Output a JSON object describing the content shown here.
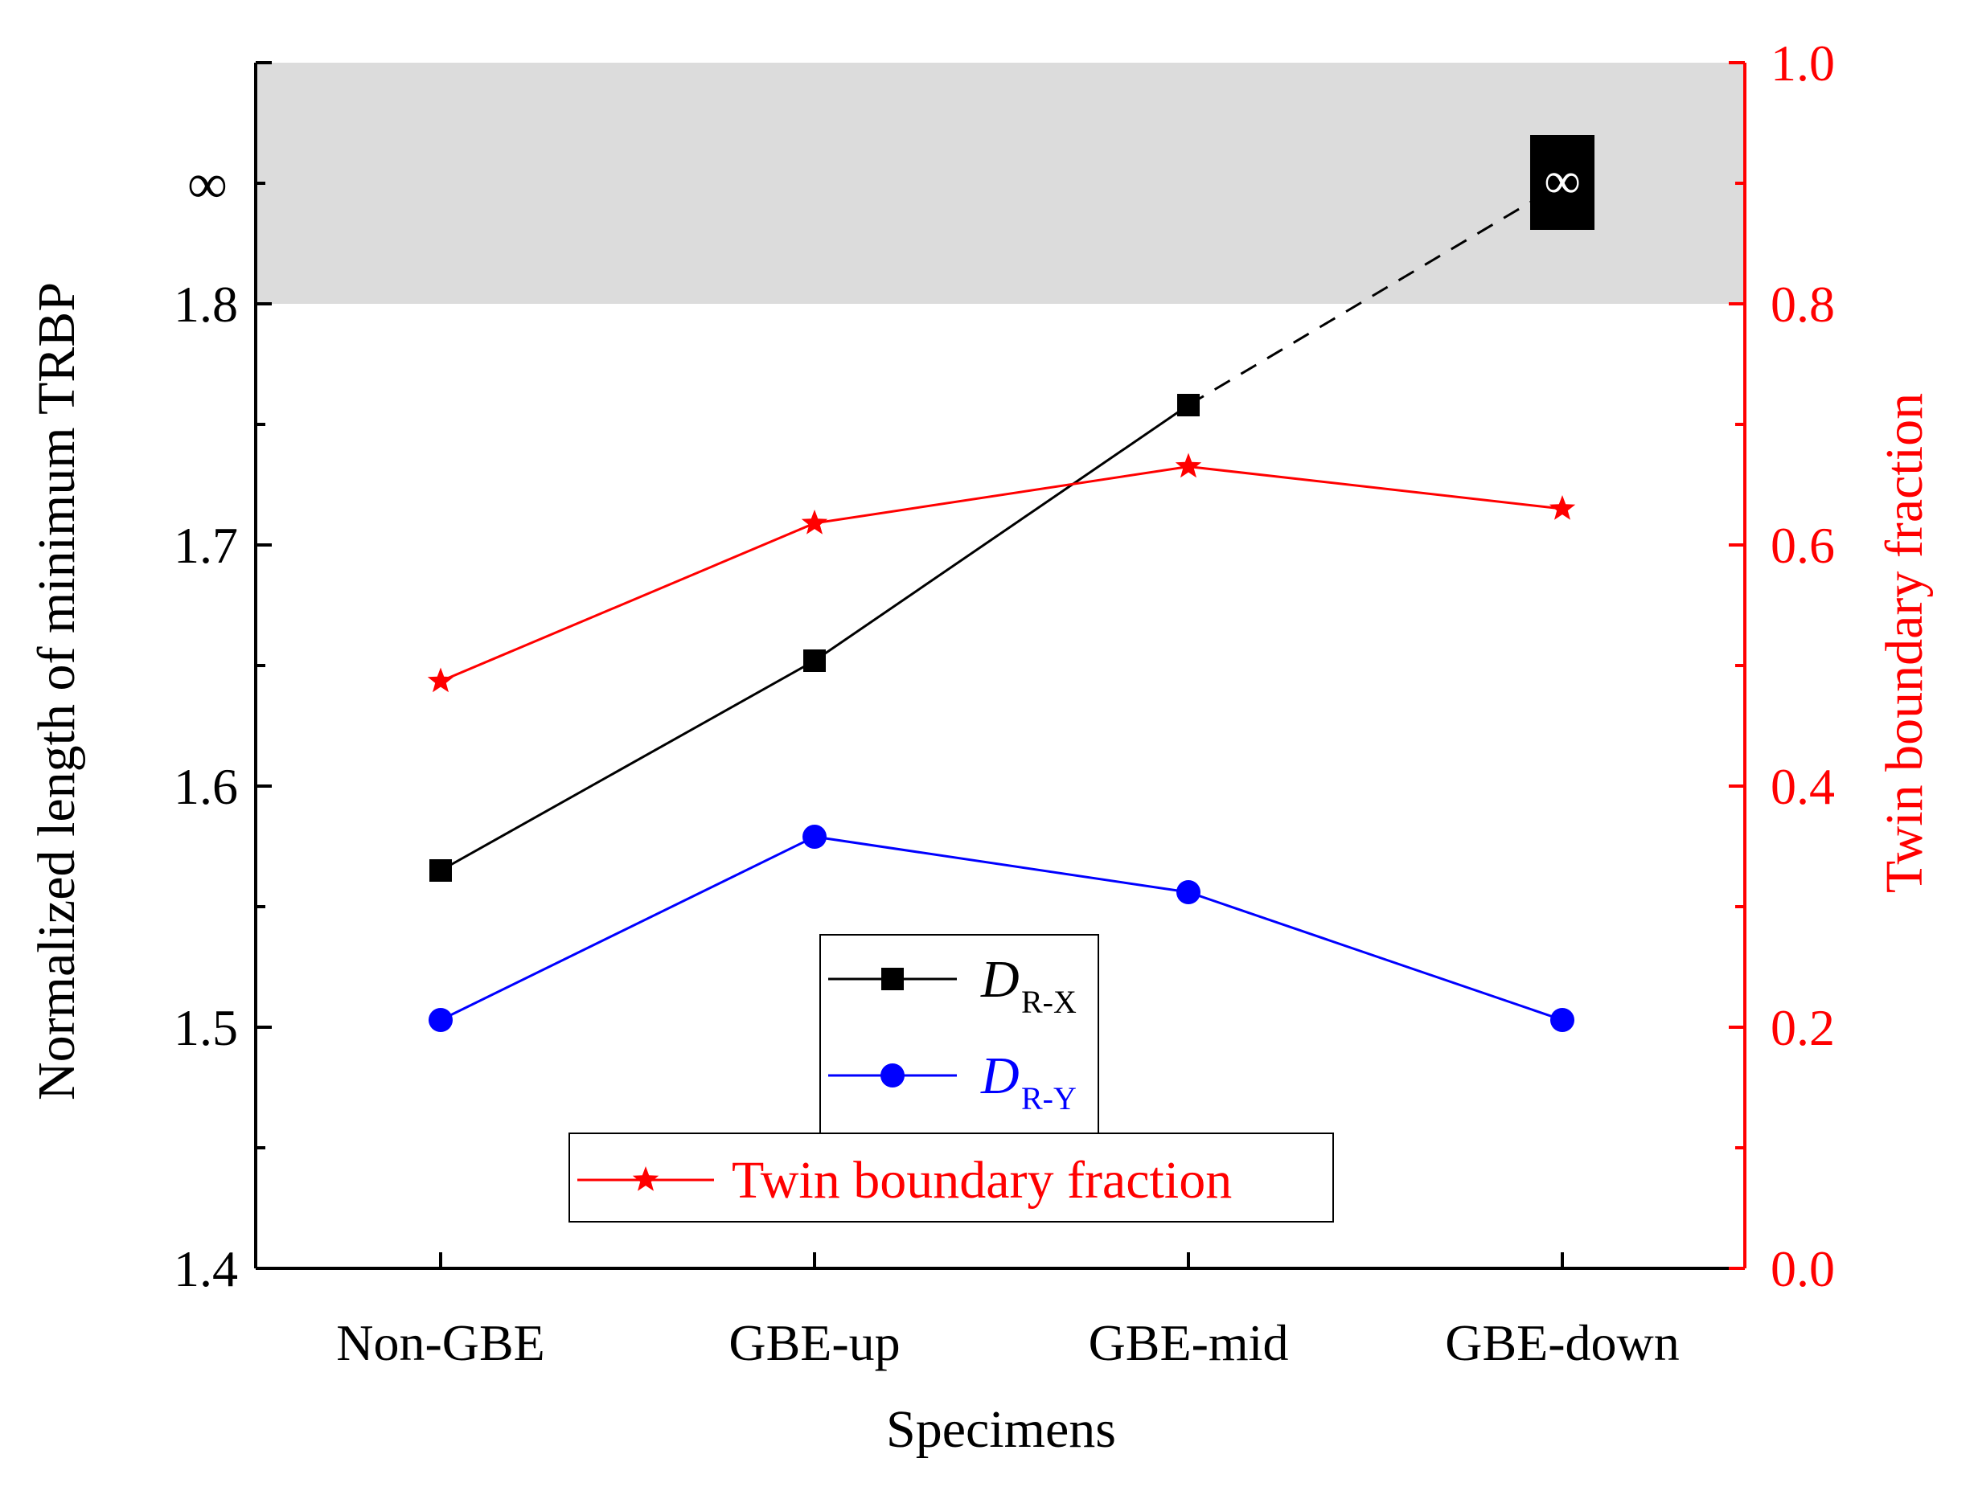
{
  "chart_data": {
    "type": "line",
    "xlabel": "Specimens",
    "ylabel": "Normalized length of minimum TRBP",
    "y2label": "Twin boundary fraction",
    "categories": [
      "Non-GBE",
      "GBE-up",
      "GBE-mid",
      "GBE-down"
    ],
    "ylim": [
      1.4,
      1.9
    ],
    "y_ticks": [
      "1.4",
      "1.5",
      "1.6",
      "1.7",
      "1.8"
    ],
    "y_infinity_label": "∞",
    "y2lim": [
      0.0,
      1.0
    ],
    "y2_ticks": [
      "0.0",
      "0.2",
      "0.4",
      "0.6",
      "0.8",
      "1.0"
    ],
    "shaded_region": {
      "from": 1.8,
      "to": 1.9,
      "meaning": "infinite"
    },
    "series": [
      {
        "name": "D_R-X",
        "legend_main": "D",
        "legend_sub": "R-X",
        "axis": "left",
        "marker": "square",
        "color": "#000000",
        "values": [
          1.565,
          1.652,
          1.758,
          null
        ],
        "extension": {
          "from_index": 2,
          "to_index": 3,
          "to_value": 1.85,
          "style": "dashed",
          "label": "∞"
        }
      },
      {
        "name": "D_R-Y",
        "legend_main": "D",
        "legend_sub": "R-Y",
        "axis": "left",
        "marker": "circle",
        "color": "#0000ff",
        "values": [
          1.503,
          1.579,
          1.556,
          1.503
        ]
      },
      {
        "name": "Twin boundary fraction",
        "legend_label": "Twin boundary fraction",
        "axis": "right",
        "marker": "star",
        "color": "#ff0000",
        "values": [
          0.487,
          0.618,
          0.665,
          0.63
        ]
      }
    ],
    "legend_position": "bottom-center"
  }
}
